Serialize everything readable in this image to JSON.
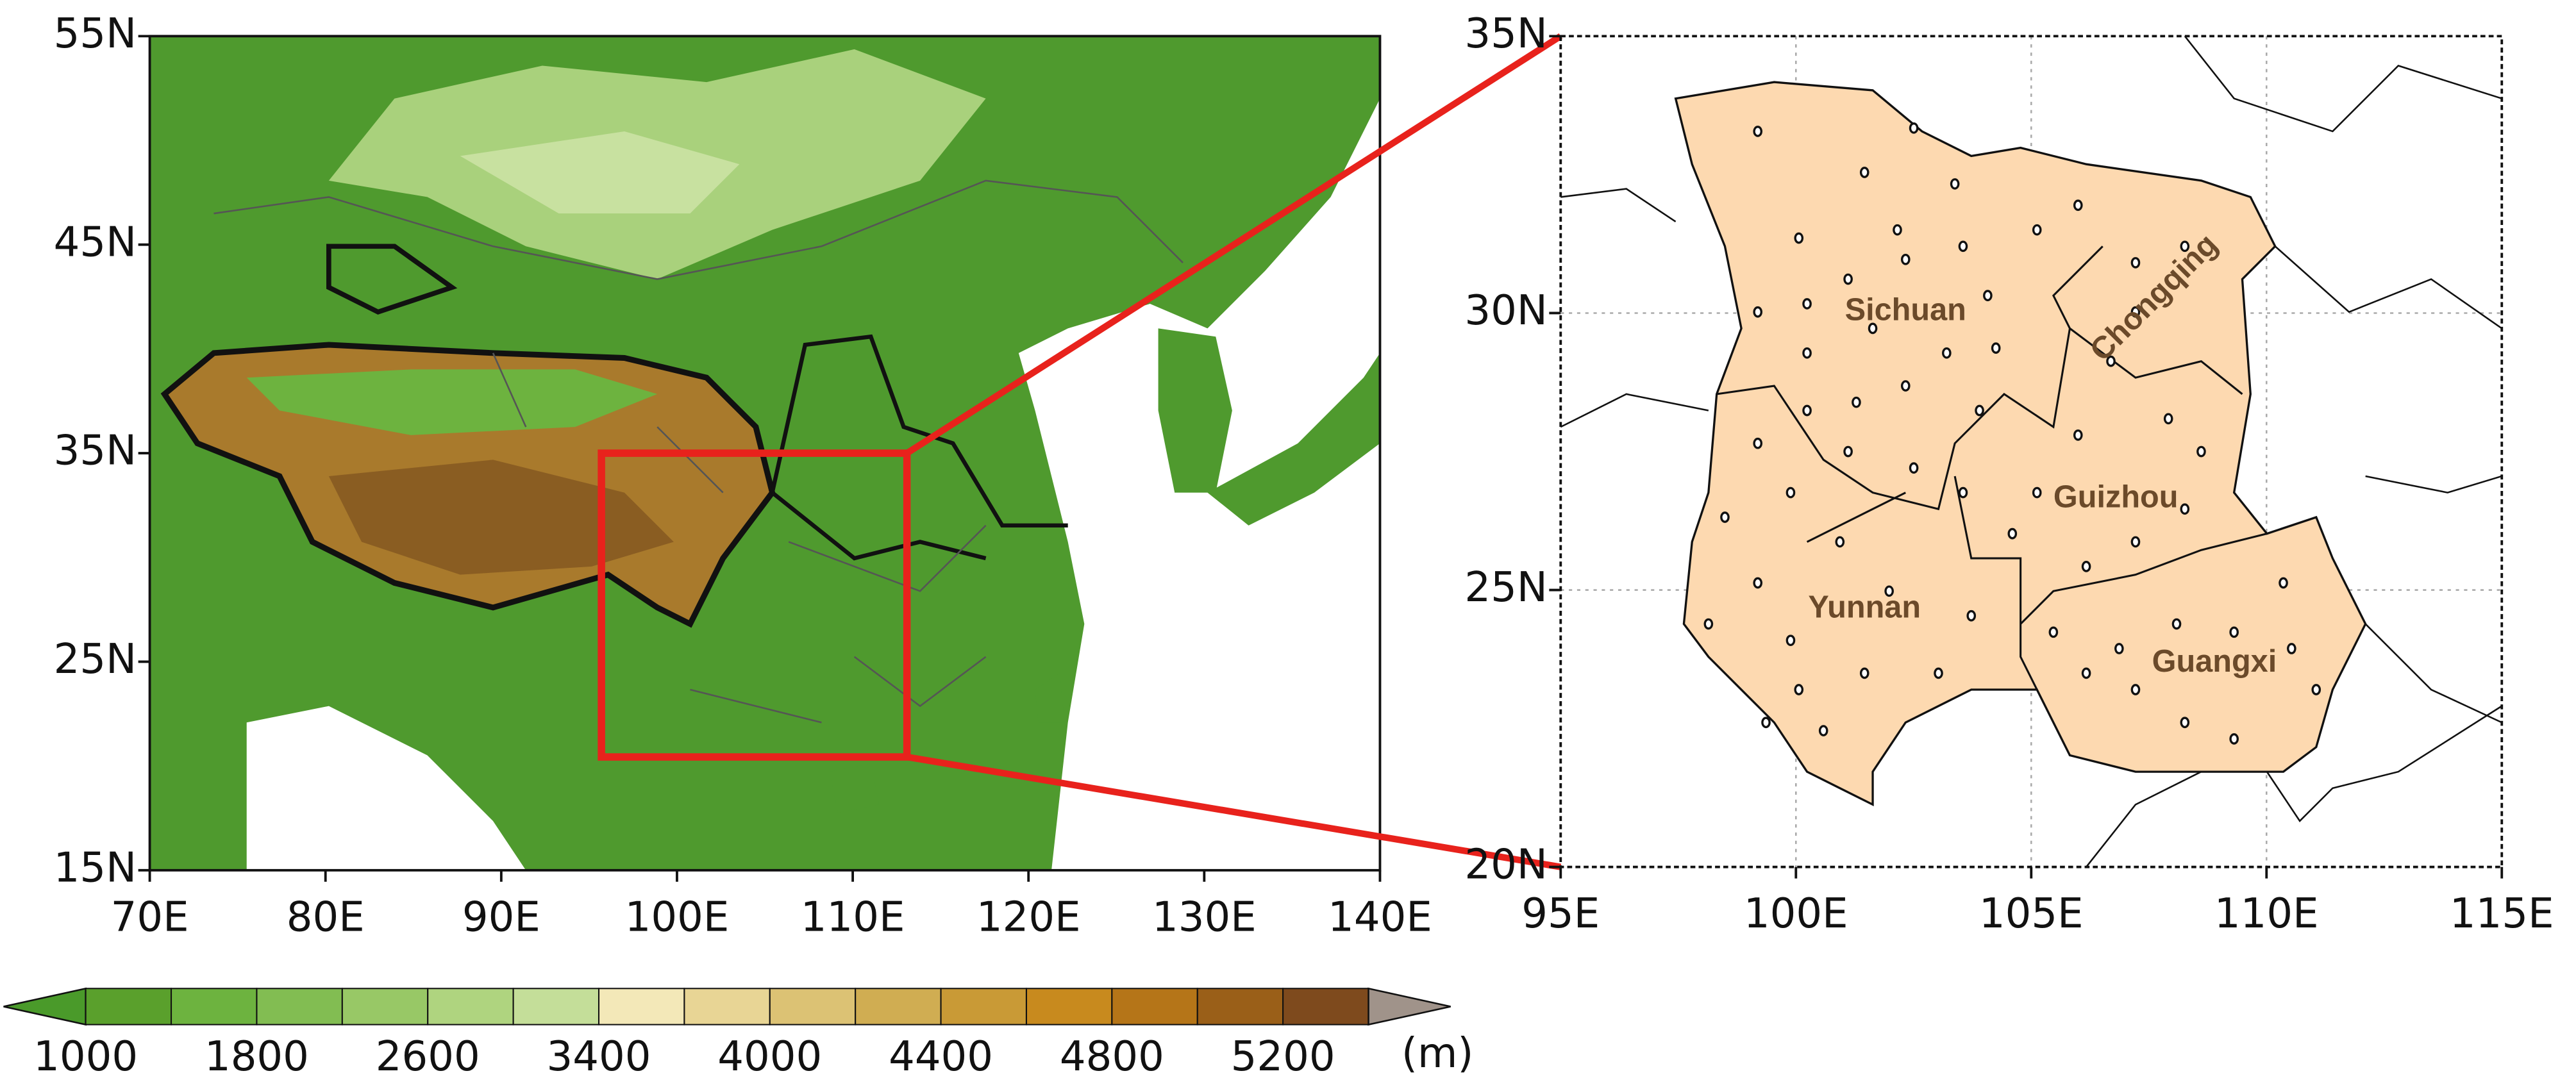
{
  "left_map": {
    "yticks": [
      {
        "value": 55,
        "label": "55N"
      },
      {
        "value": 45,
        "label": "45N"
      },
      {
        "value": 35,
        "label": "35N"
      },
      {
        "value": 25,
        "label": "25N"
      },
      {
        "value": 15,
        "label": "15N"
      }
    ],
    "xticks": [
      {
        "value": 70,
        "label": "70E"
      },
      {
        "value": 80,
        "label": "80E"
      },
      {
        "value": 90,
        "label": "90E"
      },
      {
        "value": 100,
        "label": "100E"
      },
      {
        "value": 110,
        "label": "110E"
      },
      {
        "value": 120,
        "label": "120E"
      },
      {
        "value": 130,
        "label": "130E"
      },
      {
        "value": 140,
        "label": "140E"
      }
    ]
  },
  "right_map": {
    "yticks": [
      {
        "value": 35,
        "label": "35N"
      },
      {
        "value": 30,
        "label": "30N"
      },
      {
        "value": 25,
        "label": "25N"
      },
      {
        "value": 20,
        "label": "20N"
      }
    ],
    "xticks": [
      {
        "value": 95,
        "label": "95E"
      },
      {
        "value": 100,
        "label": "100E"
      },
      {
        "value": 105,
        "label": "105E"
      },
      {
        "value": 110,
        "label": "110E"
      },
      {
        "value": 115,
        "label": "115E"
      }
    ],
    "provinces": [
      "Sichuan",
      "Chongqing",
      "Guizhou",
      "Yunnan",
      "Guangxi"
    ]
  },
  "colorbar": {
    "colors": [
      "#4a9a2a",
      "#5aa02c",
      "#6db33f",
      "#82bd52",
      "#98c866",
      "#afd47f",
      "#c4de99",
      "#f3e8b8",
      "#e8d595",
      "#dcc274",
      "#d0ad52",
      "#c99a36",
      "#c88a1e",
      "#b57518",
      "#9a5f18",
      "#7e4a1d",
      "#a0938a"
    ],
    "labels": [
      1000,
      1800,
      2600,
      3400,
      4000,
      4400,
      4800,
      5200
    ],
    "unit": "(m)"
  }
}
